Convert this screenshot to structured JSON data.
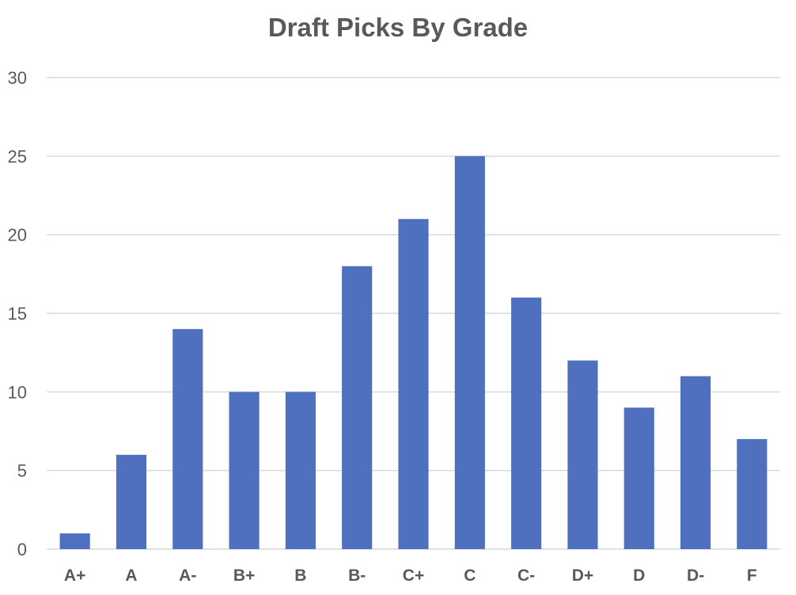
{
  "chart_data": {
    "type": "bar",
    "title": "Draft Picks By Grade",
    "xlabel": "",
    "ylabel": "",
    "categories": [
      "A+",
      "A",
      "A-",
      "B+",
      "B",
      "B-",
      "C+",
      "C",
      "C-",
      "D+",
      "D",
      "D-",
      "F"
    ],
    "values": [
      1,
      6,
      14,
      10,
      10,
      18,
      21,
      25,
      16,
      12,
      9,
      11,
      7
    ],
    "ylim": [
      0,
      30
    ],
    "yticks": [
      0,
      5,
      10,
      15,
      20,
      25,
      30
    ],
    "grid": true,
    "legend": "none",
    "bar_color": "#4F70BE",
    "gridline_color": "#D9D9D9",
    "text_color": "#595959"
  }
}
